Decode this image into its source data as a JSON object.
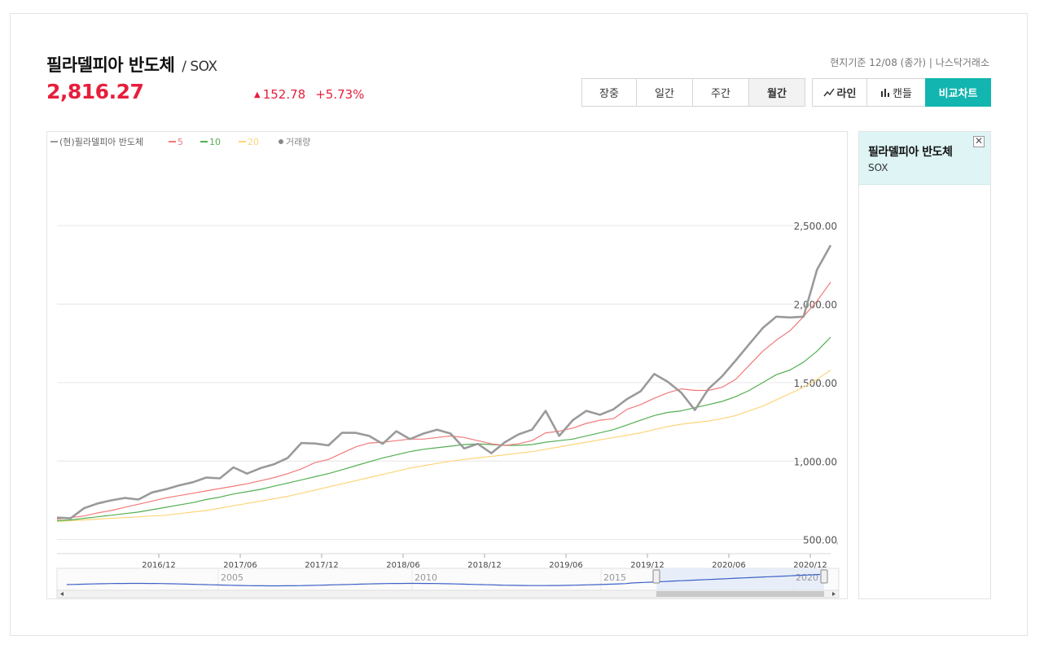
{
  "header": {
    "name": "필라델피아 반도체",
    "code": "/ SOX",
    "price": "2,816.27",
    "change_arrow": "▲",
    "change": "152.78",
    "change_pct": "+5.73%",
    "basis": "현지기준 12/08 (종가) | 나스닥거래소"
  },
  "period_tabs": [
    {
      "label": "장중",
      "active": false
    },
    {
      "label": "일간",
      "active": false
    },
    {
      "label": "주간",
      "active": false
    },
    {
      "label": "월간",
      "active": true
    }
  ],
  "type_buttons": [
    {
      "label": "라인",
      "icon": "line-chart-icon"
    },
    {
      "label": "캔들",
      "icon": "bar-chart-icon"
    }
  ],
  "compare_label": "비교차트",
  "sidebar": {
    "name": "필라델피아 반도체",
    "code": "SOX",
    "close_icon": "close-icon"
  },
  "colors": {
    "price": "#9a9a9a",
    "ma5": "#f27a7a",
    "ma10": "#52b052",
    "ma20": "#fdd57a",
    "up": "#e61e3c",
    "navigator": "#3d62c7"
  },
  "chart_data": {
    "type": "line",
    "legend": [
      {
        "label": "(현)필라델피아 반도체",
        "color": "#9a9a9a",
        "marker": "line"
      },
      {
        "label": "5",
        "color": "#f27a7a",
        "marker": "line"
      },
      {
        "label": "10",
        "color": "#52b052",
        "marker": "line"
      },
      {
        "label": "20",
        "color": "#fdd57a",
        "marker": "line"
      },
      {
        "label": "거래량",
        "color": "#888888",
        "marker": "dot"
      }
    ],
    "legend_position": "top-left",
    "ylim": [
      410,
      2900
    ],
    "y_ticks": [
      500,
      1000,
      1500,
      2000,
      2500
    ],
    "y_tick_labels": [
      "500.00",
      "1,000.00",
      "1,500.00",
      "2,000.00",
      "2,500.00"
    ],
    "x_ticks": [
      {
        "index": 7.5,
        "label": "2016/12"
      },
      {
        "index": 13.5,
        "label": "2017/06"
      },
      {
        "index": 19.5,
        "label": "2017/12"
      },
      {
        "index": 25.5,
        "label": "2018/06"
      },
      {
        "index": 31.5,
        "label": "2018/12"
      },
      {
        "index": 37.5,
        "label": "2019/06"
      },
      {
        "index": 43.5,
        "label": "2019/12"
      },
      {
        "index": 49.5,
        "label": "2020/06"
      },
      {
        "index": 55.5,
        "label": "2020/12"
      }
    ],
    "series": [
      {
        "name": "(현)필라델피아 반도체",
        "color": "#9a9a9a",
        "width": 2.6,
        "values": [
          640,
          635,
          700,
          730,
          750,
          765,
          755,
          800,
          820,
          845,
          865,
          895,
          890,
          960,
          920,
          955,
          980,
          1020,
          1115,
          1112,
          1100,
          1180,
          1180,
          1160,
          1110,
          1190,
          1140,
          1175,
          1200,
          1175,
          1080,
          1110,
          1050,
          1120,
          1170,
          1200,
          1320,
          1160,
          1260,
          1320,
          1295,
          1330,
          1395,
          1445,
          1555,
          1505,
          1435,
          1325,
          1460,
          1540,
          1640,
          1745,
          1848,
          1920,
          1915,
          1920,
          2220,
          2375
        ]
      },
      {
        "name": "5",
        "color": "#f27a7a",
        "width": 1.2,
        "values": [
          630,
          640,
          650,
          670,
          685,
          705,
          725,
          745,
          765,
          780,
          795,
          810,
          825,
          840,
          855,
          875,
          895,
          920,
          950,
          990,
          1010,
          1050,
          1090,
          1115,
          1120,
          1130,
          1140,
          1140,
          1150,
          1160,
          1150,
          1130,
          1110,
          1100,
          1110,
          1130,
          1180,
          1190,
          1210,
          1240,
          1260,
          1270,
          1330,
          1360,
          1400,
          1435,
          1460,
          1450,
          1450,
          1470,
          1520,
          1610,
          1700,
          1770,
          1830,
          1920,
          2020,
          2140
        ]
      },
      {
        "name": "10",
        "color": "#52b052",
        "width": 1.2,
        "values": [
          620,
          625,
          635,
          645,
          655,
          665,
          675,
          690,
          705,
          720,
          735,
          755,
          770,
          790,
          805,
          820,
          840,
          860,
          880,
          900,
          920,
          945,
          970,
          995,
          1020,
          1040,
          1060,
          1075,
          1085,
          1095,
          1105,
          1110,
          1105,
          1100,
          1100,
          1105,
          1120,
          1130,
          1140,
          1160,
          1180,
          1200,
          1230,
          1260,
          1290,
          1310,
          1320,
          1340,
          1360,
          1380,
          1410,
          1450,
          1500,
          1550,
          1580,
          1630,
          1700,
          1790
        ]
      },
      {
        "name": "20",
        "color": "#fdd57a",
        "width": 1.2,
        "values": [
          615,
          620,
          625,
          630,
          635,
          640,
          645,
          650,
          655,
          665,
          675,
          685,
          700,
          715,
          730,
          745,
          760,
          775,
          795,
          815,
          835,
          855,
          875,
          895,
          915,
          935,
          955,
          970,
          985,
          1000,
          1010,
          1020,
          1030,
          1040,
          1050,
          1060,
          1075,
          1090,
          1105,
          1120,
          1135,
          1150,
          1165,
          1180,
          1200,
          1220,
          1235,
          1245,
          1255,
          1270,
          1290,
          1320,
          1350,
          1390,
          1430,
          1470,
          1520,
          1580
        ]
      }
    ],
    "navigator": {
      "labels": [
        "2005",
        "2010",
        "2015",
        "2020"
      ]
    }
  }
}
